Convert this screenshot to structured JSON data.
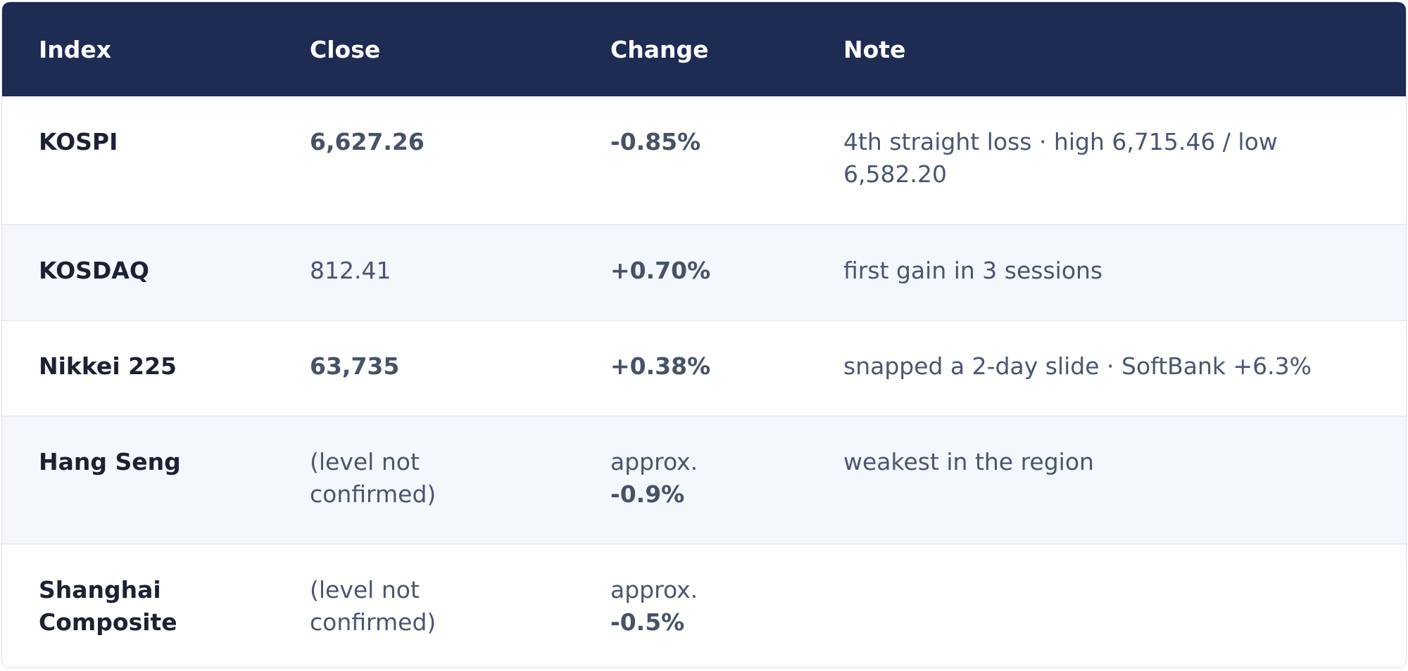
{
  "table": {
    "headers": {
      "index": "Index",
      "close": "Close",
      "change": "Change",
      "note": "Note"
    },
    "rows": [
      {
        "index": "KOSPI",
        "close": "6,627.26",
        "change_prefix": "",
        "change": "-0.85%",
        "note": "4th straight loss · high 6,715.46 / low 6,582.20"
      },
      {
        "index": "KOSDAQ",
        "close": "812.41",
        "change_prefix": "",
        "change": "+0.70%",
        "note": "first gain in 3 sessions"
      },
      {
        "index": "Nikkei 225",
        "close": "63,735",
        "change_prefix": "",
        "change": "+0.38%",
        "note": "snapped a 2-day slide · SoftBank +6.3%"
      },
      {
        "index": "Hang Seng",
        "close": "(level not confirmed)",
        "change_prefix": "approx.",
        "change": "-0.9%",
        "note": "weakest in the region"
      },
      {
        "index": "Shanghai Composite",
        "close": "(level not confirmed)",
        "change_prefix": "approx.",
        "change": "-0.5%",
        "note": ""
      }
    ]
  }
}
